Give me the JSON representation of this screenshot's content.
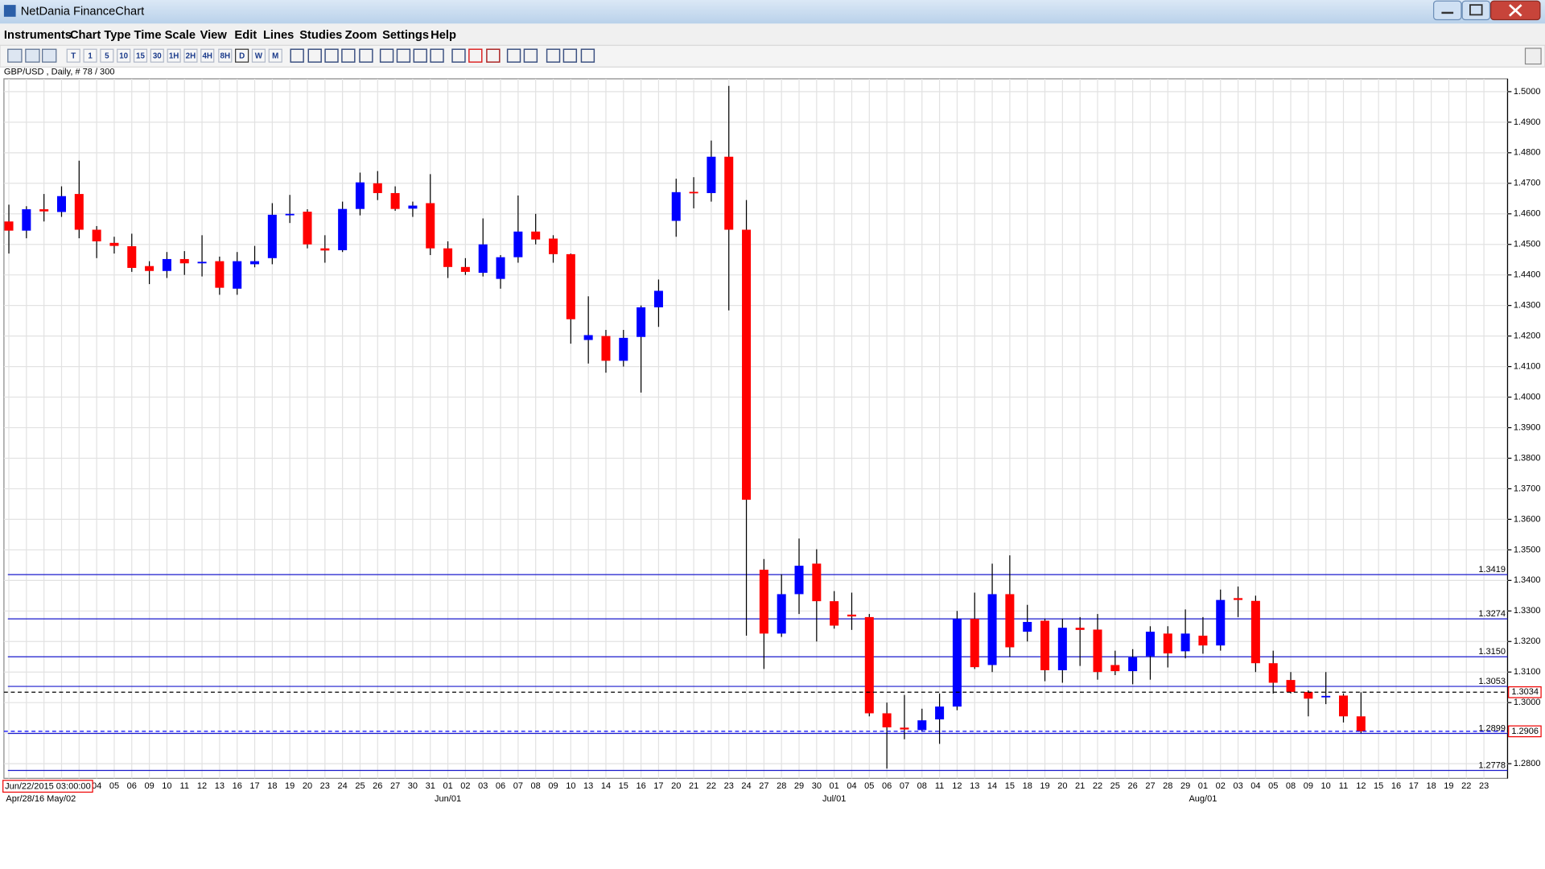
{
  "window": {
    "title": "NetDania FinanceChart"
  },
  "menu": [
    "Instruments",
    "Chart Type",
    "Time Scale",
    "View",
    "Edit",
    "Lines",
    "Studies",
    "Zoom",
    "Settings",
    "Help"
  ],
  "toolbar": [
    "T",
    "1",
    "5",
    "10",
    "15",
    "30",
    "1H",
    "2H",
    "4H",
    "8H",
    "D",
    "W",
    "M"
  ],
  "instrument": "GBP/USD , Daily, # 78 / 300",
  "cursor_time": "Jun/22/2015 03:00:00",
  "chart_data": {
    "type": "candlestick",
    "categories": [
      null,
      null,
      null,
      null,
      null,
      "04",
      "05",
      "06",
      "09",
      "10",
      "11",
      "12",
      "13",
      "16",
      "17",
      "18",
      "19",
      "20",
      "23",
      "24",
      "25",
      "26",
      "27",
      "30",
      "31",
      "01",
      "02",
      "03",
      "06",
      "07",
      "08",
      "09",
      "10",
      "13",
      "14",
      "15",
      "16",
      "17",
      "20",
      "21",
      "22",
      "23",
      "24",
      "27",
      "28",
      "29",
      "30",
      "01",
      "04",
      "05",
      "06",
      "07",
      "08",
      "11",
      "12",
      "13",
      "14",
      "15",
      "18",
      "19",
      "20",
      "21",
      "22",
      "25",
      "26",
      "27",
      "28",
      "29",
      "01",
      "02",
      "03",
      "04",
      "05",
      "08",
      "09",
      "10",
      "11",
      "12",
      "15",
      "16",
      "17",
      "18",
      "19",
      "22",
      "23"
    ],
    "months": [
      "Apr/28/16 May/02",
      null,
      null,
      null,
      null,
      null,
      null,
      null,
      null,
      null,
      null,
      null,
      null,
      null,
      null,
      null,
      null,
      null,
      null,
      null,
      null,
      null,
      null,
      null,
      null,
      "Jun/01",
      null,
      null,
      null,
      null,
      null,
      null,
      null,
      null,
      null,
      null,
      null,
      null,
      null,
      null,
      null,
      null,
      null,
      null,
      null,
      null,
      null,
      "Jul/01",
      null,
      null,
      null,
      null,
      null,
      null,
      null,
      null,
      null,
      null,
      null,
      null,
      null,
      null,
      null,
      null,
      null,
      null,
      null,
      null,
      "Aug/01",
      null,
      null,
      null,
      null,
      null,
      null,
      null,
      null,
      null,
      null,
      null,
      null,
      null,
      null,
      null,
      null
    ],
    "open": [
      1.4575,
      1.4545,
      1.4615,
      1.4606,
      1.4665,
      1.4548,
      1.4505,
      1.4494,
      1.4429,
      1.4413,
      1.4452,
      1.4438,
      1.4445,
      1.4355,
      1.4435,
      1.4455,
      1.4597,
      1.4607,
      1.4487,
      1.4481,
      1.4616,
      1.47,
      1.4668,
      1.4617,
      1.4635,
      1.4487,
      1.4426,
      1.4407,
      1.4387,
      1.4458,
      1.4542,
      1.4519,
      1.4468,
      1.4187,
      1.42,
      1.4119,
      1.4197,
      1.4294,
      1.4577,
      1.4672,
      1.4668,
      1.4787,
      1.4548,
      1.3435,
      1.3226,
      1.3355,
      1.3455,
      1.3332,
      1.3288,
      1.328,
      1.2965,
      1.2918,
      1.291,
      1.2945,
      1.2987,
      1.3274,
      1.3123,
      1.3355,
      1.3232,
      1.3268,
      1.3106,
      1.3245,
      1.3239,
      1.3123,
      1.3103,
      1.3152,
      1.3226,
      1.3168,
      1.3219,
      1.3187,
      1.3342,
      1.3333,
      1.3129,
      1.3074,
      1.3035,
      1.3018,
      1.3023,
      1.2955,
      null,
      null,
      null,
      null,
      null,
      null,
      null
    ],
    "high": [
      1.463,
      1.4625,
      1.4665,
      1.469,
      1.4774,
      1.456,
      1.4525,
      1.4535,
      1.4445,
      1.4475,
      1.4478,
      1.453,
      1.446,
      1.4475,
      1.4495,
      1.4635,
      1.4662,
      1.4615,
      1.453,
      1.464,
      1.4735,
      1.474,
      1.469,
      1.464,
      1.473,
      1.451,
      1.4455,
      1.4585,
      1.4465,
      1.466,
      1.46,
      1.453,
      1.447,
      1.433,
      1.422,
      1.422,
      1.43,
      1.4385,
      1.4715,
      1.472,
      1.484,
      1.5019,
      1.4645,
      1.347,
      1.342,
      1.3537,
      1.3502,
      1.3365,
      1.336,
      1.329,
      1.3,
      1.3025,
      1.298,
      1.303,
      1.33,
      1.336,
      1.3455,
      1.3482,
      1.332,
      1.3275,
      1.3275,
      1.328,
      1.329,
      1.317,
      1.3175,
      1.325,
      1.325,
      1.3305,
      1.328,
      1.337,
      1.338,
      1.335,
      1.317,
      1.31,
      1.304,
      1.31,
      1.303,
      1.3034,
      null,
      null,
      null,
      null,
      null,
      null,
      null
    ],
    "low": [
      1.447,
      1.452,
      1.4575,
      1.459,
      1.452,
      1.4455,
      1.447,
      1.441,
      1.437,
      1.439,
      1.44,
      1.4395,
      1.4335,
      1.4335,
      1.4425,
      1.4435,
      1.457,
      1.4487,
      1.444,
      1.4475,
      1.4595,
      1.4645,
      1.461,
      1.459,
      1.4465,
      1.439,
      1.44,
      1.4395,
      1.4355,
      1.444,
      1.45,
      1.444,
      1.4175,
      1.411,
      1.408,
      1.41,
      1.4015,
      1.423,
      1.4525,
      1.4618,
      1.464,
      1.4284,
      1.3219,
      1.311,
      1.3215,
      1.329,
      1.32,
      1.3242,
      1.3238,
      1.2955,
      1.2784,
      1.288,
      1.2905,
      1.2865,
      1.2975,
      1.311,
      1.31,
      1.315,
      1.32,
      1.307,
      1.3065,
      1.312,
      1.3075,
      1.309,
      1.306,
      1.3075,
      1.3115,
      1.3145,
      1.316,
      1.317,
      1.328,
      1.31,
      1.303,
      1.303,
      1.2955,
      1.2995,
      1.2935,
      1.29,
      null,
      null,
      null,
      null,
      null,
      null,
      null
    ],
    "close": [
      1.4545,
      1.4615,
      1.4608,
      1.4658,
      1.4548,
      1.451,
      1.4495,
      1.4423,
      1.4413,
      1.4452,
      1.4438,
      1.4443,
      1.4358,
      1.4445,
      1.4445,
      1.4597,
      1.46,
      1.45,
      1.448,
      1.4616,
      1.4703,
      1.4668,
      1.4616,
      1.4627,
      1.4487,
      1.4426,
      1.441,
      1.45,
      1.4458,
      1.4542,
      1.4516,
      1.4468,
      1.4255,
      1.4203,
      1.4119,
      1.4194,
      1.4294,
      1.4348,
      1.4671,
      1.4668,
      1.4787,
      1.4548,
      1.3664,
      1.3226,
      1.3355,
      1.3448,
      1.3332,
      1.3252,
      1.3282,
      1.2965,
      1.2919,
      1.2912,
      1.2942,
      1.2987,
      1.3274,
      1.3116,
      1.3355,
      1.3181,
      1.3264,
      1.3106,
      1.3245,
      1.3238,
      1.31,
      1.3103,
      1.3148,
      1.3232,
      1.3161,
      1.3226,
      1.3187,
      1.3336,
      1.3336,
      1.3129,
      1.3065,
      1.3035,
      1.3013,
      1.3022,
      1.2955,
      1.2906,
      null,
      null,
      null,
      null,
      null,
      null,
      null
    ],
    "up_color": "#0000ff",
    "down_color": "#ff0000",
    "ylim": [
      1.2752,
      1.5042
    ],
    "yticks": [
      {
        "value": 1.28,
        "label": "1.2800"
      },
      {
        "value": 1.29,
        "label": "1.2900"
      },
      {
        "value": 1.3,
        "label": "1.3000"
      },
      {
        "value": 1.31,
        "label": "1.3100"
      },
      {
        "value": 1.32,
        "label": "1.3200"
      },
      {
        "value": 1.33,
        "label": "1.3300"
      },
      {
        "value": 1.34,
        "label": "1.3400"
      },
      {
        "value": 1.35,
        "label": "1.3500"
      },
      {
        "value": 1.36,
        "label": "1.3600"
      },
      {
        "value": 1.37,
        "label": "1.3700"
      },
      {
        "value": 1.38,
        "label": "1.3800"
      },
      {
        "value": 1.39,
        "label": "1.3900"
      },
      {
        "value": 1.4,
        "label": "1.4000"
      },
      {
        "value": 1.41,
        "label": "1.4100"
      },
      {
        "value": 1.42,
        "label": "1.4200"
      },
      {
        "value": 1.43,
        "label": "1.4300"
      },
      {
        "value": 1.44,
        "label": "1.4400"
      },
      {
        "value": 1.45,
        "label": "1.4500"
      },
      {
        "value": 1.46,
        "label": "1.4600"
      },
      {
        "value": 1.47,
        "label": "1.4700"
      },
      {
        "value": 1.48,
        "label": "1.4800"
      },
      {
        "value": 1.49,
        "label": "1.4900"
      },
      {
        "value": 1.5,
        "label": "1.5000"
      }
    ],
    "grid": true,
    "level_color": "#1a1acc",
    "levels": [
      {
        "value": 1.3419
      },
      {
        "value": 1.3274
      },
      {
        "value": 1.315,
        "label": "1.3150"
      },
      {
        "value": 1.3053
      },
      {
        "value": 1.2899
      },
      {
        "value": 1.2778
      }
    ],
    "markers": [
      {
        "value": 1.3034,
        "color": "#000000"
      },
      {
        "value": 1.2906,
        "color": "#0000ff"
      }
    ]
  }
}
